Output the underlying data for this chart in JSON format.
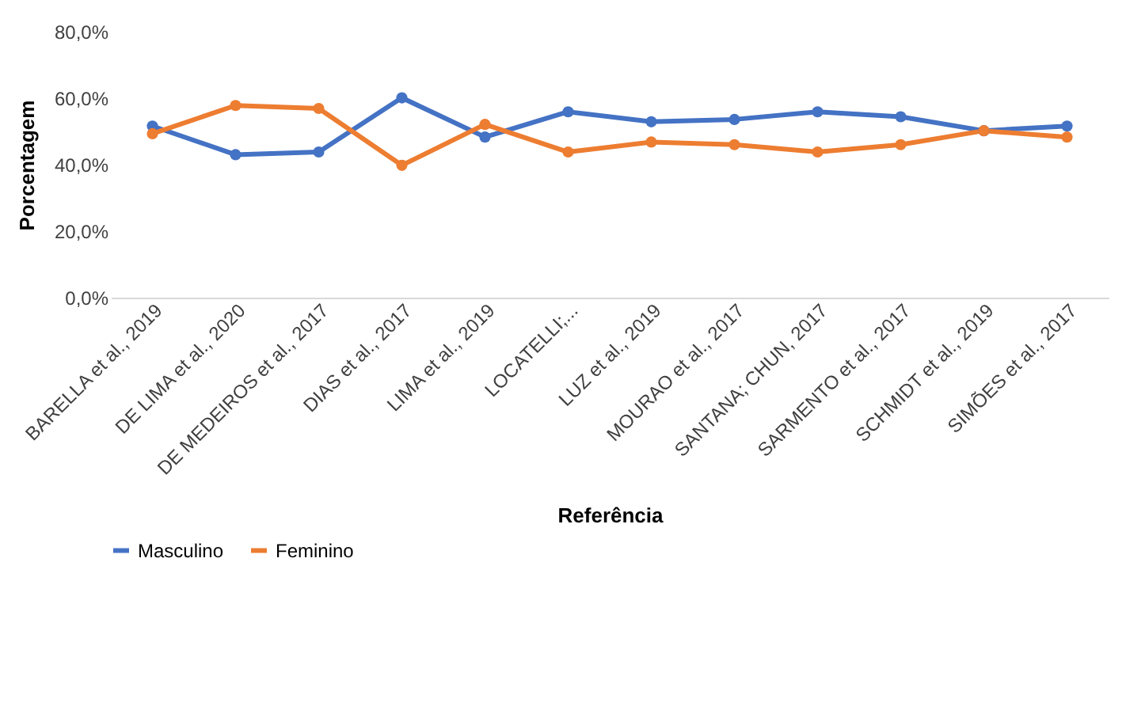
{
  "chart_data": {
    "type": "line",
    "xlabel": "Referência",
    "ylabel": "Porcentagem",
    "categories": [
      "BARELLA et al., 2019",
      "DE LIMA et al., 2020",
      "DE MEDEIROS et al., 2017",
      "DIAS et al., 2017",
      "LIMA et al., 2019",
      "LOCATELLI;...",
      "LUZ et al., 2019",
      "MOURAO et al., 2017",
      "SANTANA; CHUN, 2017",
      "SARMENTO et al., 2017",
      "SCHMIDT et al., 2019",
      "SIMÕES et al., 2017"
    ],
    "series": [
      {
        "name": "Masculino",
        "color": "#4472c4",
        "values": [
          51.6,
          43.0,
          43.8,
          60.1,
          48.3,
          55.9,
          52.9,
          53.6,
          55.9,
          54.4,
          50.2,
          51.6
        ]
      },
      {
        "name": "Feminino",
        "color": "#ed7d31",
        "values": [
          49.3,
          57.8,
          56.9,
          39.8,
          52.1,
          43.8,
          46.8,
          46.0,
          43.8,
          46.0,
          50.2,
          48.3
        ]
      }
    ],
    "ylim": [
      0,
      80
    ],
    "yticks": [
      {
        "value": 0,
        "label": "0,0%"
      },
      {
        "value": 20,
        "label": "20,0%"
      },
      {
        "value": 40,
        "label": "40,0%"
      },
      {
        "value": 60,
        "label": "60,0%"
      },
      {
        "value": 80,
        "label": "80,0%"
      }
    ],
    "grid": false,
    "legend": "bottom",
    "marker": "circle",
    "line_style": "solid"
  }
}
